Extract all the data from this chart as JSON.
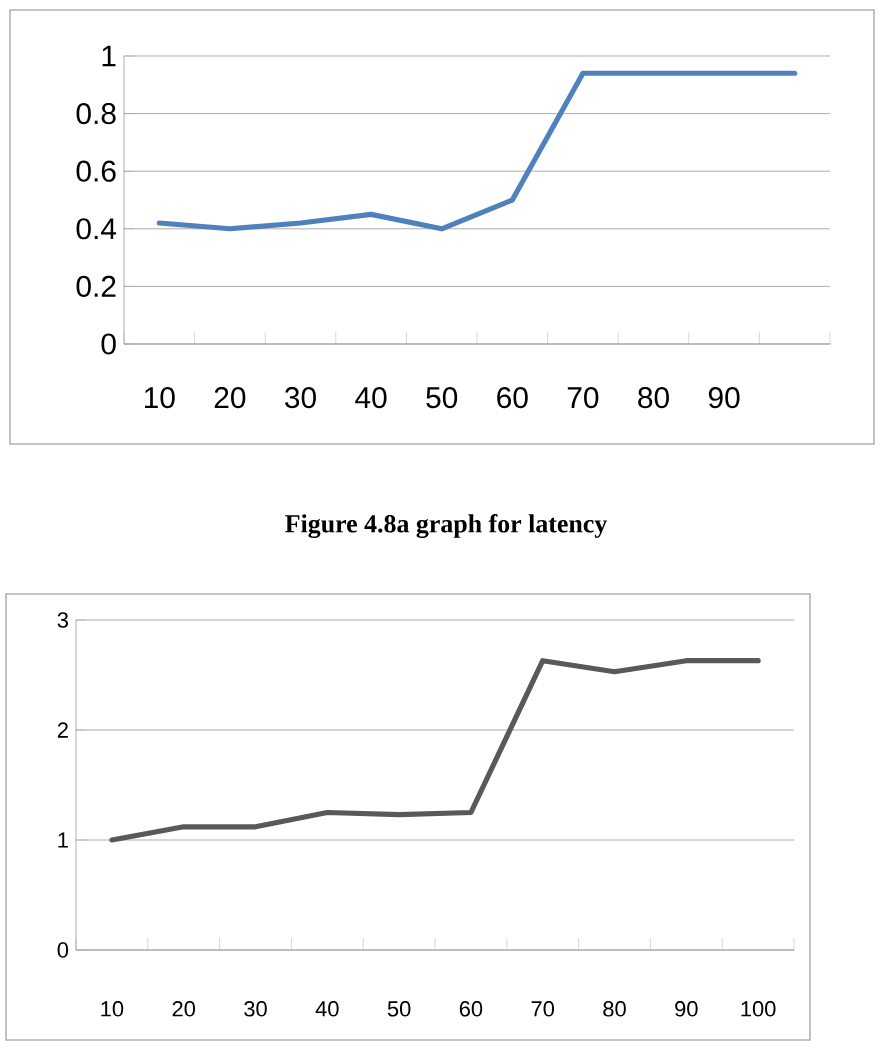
{
  "chart_data": [
    {
      "type": "line",
      "categories": [
        "10",
        "20",
        "30",
        "40",
        "50",
        "60",
        "70",
        "80",
        "90",
        null
      ],
      "values": [
        0.42,
        0.4,
        0.42,
        0.45,
        0.4,
        0.5,
        0.94,
        0.94,
        0.94,
        0.94
      ],
      "color": "#4f81bd",
      "ylim": [
        0,
        1
      ],
      "yticks": [
        0,
        0.2,
        0.4,
        0.6,
        0.8,
        1
      ],
      "grid": "y",
      "annotations": [
        "Figure 4.8a graph for latency"
      ]
    },
    {
      "type": "line",
      "categories": [
        "10",
        "20",
        "30",
        "40",
        "50",
        "60",
        "70",
        "80",
        "90",
        "100"
      ],
      "values": [
        1.0,
        1.12,
        1.12,
        1.25,
        1.23,
        1.25,
        2.63,
        2.53,
        2.63,
        2.63
      ],
      "color": "#595959",
      "ylim": [
        0,
        3
      ],
      "yticks": [
        0,
        1,
        2,
        3
      ],
      "grid": "y"
    }
  ]
}
